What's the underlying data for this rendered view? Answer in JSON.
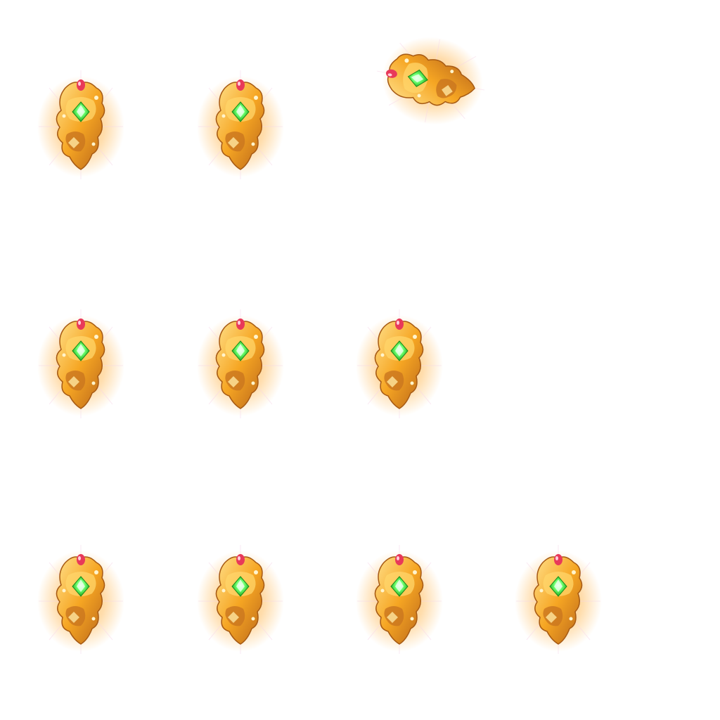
{
  "sprite_sheet": {
    "background": "#ffffff",
    "colors": {
      "gold": "#f6a623",
      "gold_light": "#ffd66b",
      "gold_dark": "#b8641a",
      "gem": "#3cf03c",
      "gem_light": "#d9ffd9",
      "ruby": "#e8395a",
      "glow": "#ffb347"
    },
    "icon": "golden-ornament-with-green-gem",
    "rows": [
      {
        "frames": [
          {
            "icon": "ornament-icon"
          },
          {
            "icon": "ornament-icon"
          },
          {
            "icon": "ornament-icon",
            "rotated": true
          }
        ]
      },
      {
        "frames": [
          {
            "icon": "ornament-icon"
          },
          {
            "icon": "ornament-icon"
          },
          {
            "icon": "ornament-icon"
          }
        ]
      },
      {
        "frames": [
          {
            "icon": "ornament-icon"
          },
          {
            "icon": "ornament-icon"
          },
          {
            "icon": "ornament-icon"
          },
          {
            "icon": "ornament-icon"
          }
        ]
      }
    ]
  }
}
